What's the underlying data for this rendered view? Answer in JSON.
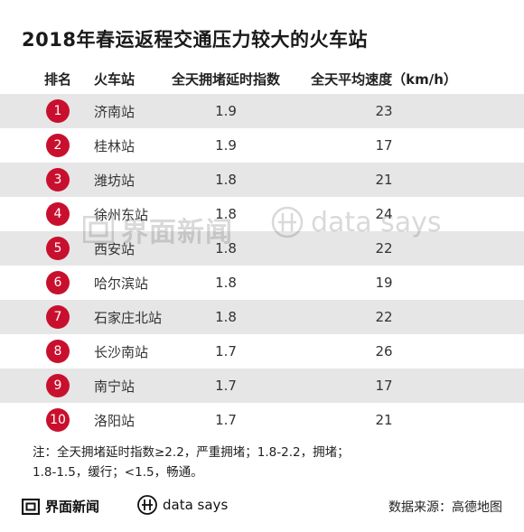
{
  "title": "2018年春运返程交通压力较大的火车站",
  "chart_data": {
    "type": "table",
    "columns": [
      "排名",
      "火车站",
      "全天拥堵延时指数",
      "全天平均速度（km/h）"
    ],
    "rows": [
      {
        "rank": "1",
        "station": "济南站",
        "index": "1.9",
        "speed": "23"
      },
      {
        "rank": "2",
        "station": "桂林站",
        "index": "1.9",
        "speed": "17"
      },
      {
        "rank": "3",
        "station": "潍坊站",
        "index": "1.8",
        "speed": "21"
      },
      {
        "rank": "4",
        "station": "徐州东站",
        "index": "1.8",
        "speed": "24"
      },
      {
        "rank": "5",
        "station": "西安站",
        "index": "1.8",
        "speed": "22"
      },
      {
        "rank": "6",
        "station": "哈尔滨站",
        "index": "1.8",
        "speed": "19"
      },
      {
        "rank": "7",
        "station": "石家庄北站",
        "index": "1.8",
        "speed": "22"
      },
      {
        "rank": "8",
        "station": "长沙南站",
        "index": "1.7",
        "speed": "26"
      },
      {
        "rank": "9",
        "station": "南宁站",
        "index": "1.7",
        "speed": "17"
      },
      {
        "rank": "10",
        "station": "洛阳站",
        "index": "1.7",
        "speed": "21"
      }
    ]
  },
  "note": {
    "line1": "注：全天拥堵延时指数≥2.2，严重拥堵；1.8-2.2，拥堵；",
    "line2": "1.8-1.5，缓行；<1.5，畅通。"
  },
  "footer": {
    "brand": "界面新闻",
    "data_says": "data says",
    "source": "数据来源：高德地图"
  },
  "watermark": {
    "brand": "界面新闻",
    "data_says": "data says"
  },
  "colors": {
    "badge": "#c8102e",
    "row_shade": "#e6e6e6"
  }
}
